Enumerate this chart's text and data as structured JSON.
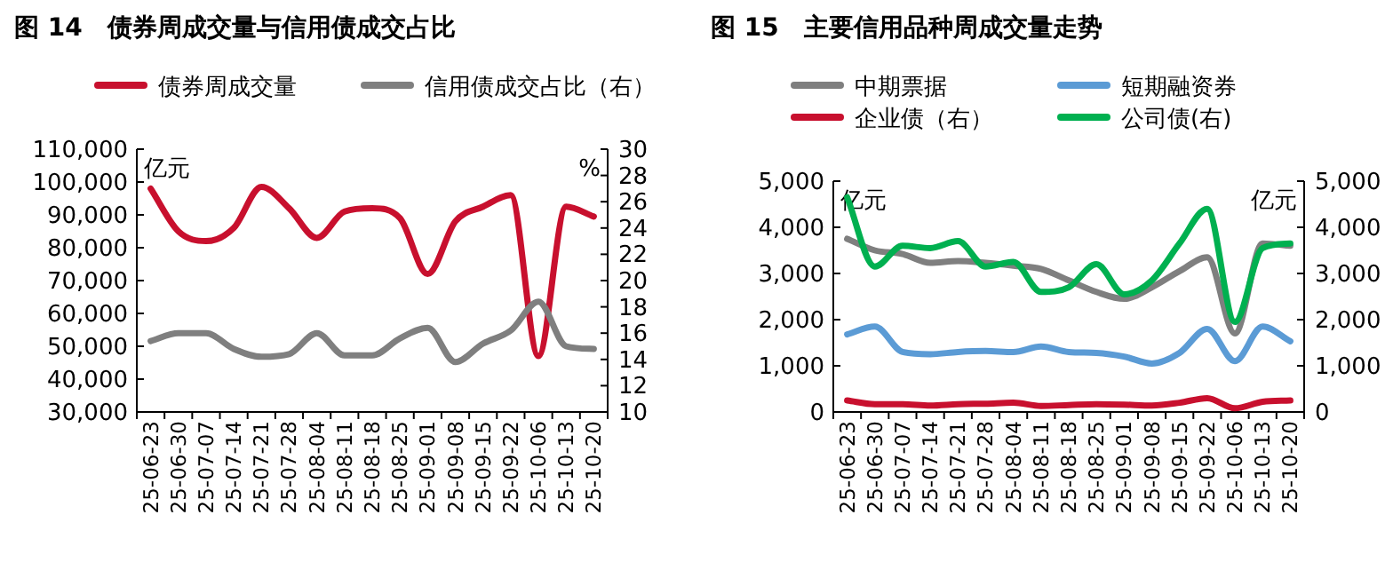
{
  "chart_data": [
    {
      "type": "line",
      "title": "图 14　债券周成交量与信用债成交占比",
      "ylabel": "亿元",
      "y2label": "%",
      "legend": "top",
      "categories": [
        "25-06-23",
        "25-06-30",
        "25-07-07",
        "25-07-14",
        "25-07-21",
        "25-07-28",
        "25-08-04",
        "25-08-11",
        "25-08-18",
        "25-08-25",
        "25-09-01",
        "25-09-08",
        "25-09-15",
        "25-09-22",
        "25-10-06",
        "25-10-13",
        "25-10-20"
      ],
      "series": [
        {
          "name": "债券周成交量",
          "color": "#c8102e",
          "values": [
            98000,
            85000,
            82000,
            86000,
            98500,
            92000,
            83000,
            91000,
            92000,
            89000,
            72000,
            88000,
            92500,
            96000,
            47000,
            92500,
            89500
          ]
        },
        {
          "name": "信用债成交占比（右）",
          "color": "#7f7f7f",
          "axis": "y2",
          "values": [
            15.4,
            16.0,
            16.0,
            14.8,
            14.2,
            14.4,
            16.0,
            14.3,
            14.3,
            15.6,
            16.4,
            13.8,
            15.2,
            16.2,
            18.4,
            15.0,
            14.8
          ]
        }
      ],
      "ylim": [
        30000,
        110000
      ],
      "yticks": [
        {
          "value": 30000,
          "label": "30,000"
        },
        {
          "value": 40000,
          "label": "40,000"
        },
        {
          "value": 50000,
          "label": "50,000"
        },
        {
          "value": 60000,
          "label": "60,000"
        },
        {
          "value": 70000,
          "label": "70,000"
        },
        {
          "value": 80000,
          "label": "80,000"
        },
        {
          "value": 90000,
          "label": "90,000"
        },
        {
          "value": 100000,
          "label": "100,000"
        },
        {
          "value": 110000,
          "label": "110,000"
        }
      ],
      "y2lim": [
        10,
        30
      ],
      "y2ticks": [
        10,
        12,
        14,
        16,
        18,
        20,
        22,
        24,
        26,
        28,
        30
      ]
    },
    {
      "type": "line",
      "title": "图 15　主要信用品种周成交量走势",
      "ylabel": "亿元",
      "y2label": "亿元",
      "legend": "top",
      "categories": [
        "25-06-23",
        "25-06-30",
        "25-07-07",
        "25-07-14",
        "25-07-21",
        "25-07-28",
        "25-08-04",
        "25-08-11",
        "25-08-18",
        "25-08-25",
        "25-09-01",
        "25-09-08",
        "25-09-15",
        "25-09-22",
        "25-10-06",
        "25-10-13",
        "25-10-20"
      ],
      "series": [
        {
          "name": "中期票据",
          "color": "#7f7f7f",
          "values": [
            3750,
            3500,
            3420,
            3230,
            3270,
            3230,
            3170,
            3100,
            2850,
            2600,
            2450,
            2700,
            3050,
            3350,
            1700,
            3650,
            3600
          ]
        },
        {
          "name": "短期融资券",
          "color": "#5b9bd5",
          "values": [
            1680,
            1850,
            1300,
            1250,
            1300,
            1320,
            1300,
            1420,
            1300,
            1280,
            1200,
            1050,
            1280,
            1800,
            1100,
            1850,
            1530
          ]
        },
        {
          "name": "企业债（右）",
          "color": "#c8102e",
          "axis": "y2",
          "values": [
            250,
            170,
            170,
            140,
            170,
            180,
            200,
            130,
            150,
            170,
            160,
            140,
            200,
            300,
            80,
            220,
            250
          ]
        },
        {
          "name": "公司债(右)",
          "color": "#00b050",
          "axis": "y2",
          "values": [
            4650,
            3150,
            3600,
            3550,
            3700,
            3150,
            3250,
            2600,
            2700,
            3200,
            2550,
            2850,
            3650,
            4400,
            1950,
            3550,
            3650
          ]
        }
      ],
      "ylim": [
        0,
        5000
      ],
      "yticks": [
        0,
        {
          "value": 1000,
          "label": "1,000"
        },
        {
          "value": 2000,
          "label": "2,000"
        },
        {
          "value": 3000,
          "label": "3,000"
        },
        {
          "value": 4000,
          "label": "4,000"
        },
        {
          "value": 5000,
          "label": "5,000"
        }
      ],
      "y2lim": [
        0,
        5000
      ],
      "y2ticks": [
        0,
        {
          "value": 1000,
          "label": "1,000"
        },
        {
          "value": 2000,
          "label": "2,000"
        },
        {
          "value": 3000,
          "label": "3,000"
        },
        {
          "value": 4000,
          "label": "4,000"
        },
        {
          "value": 5000,
          "label": "5,000"
        }
      ]
    }
  ]
}
